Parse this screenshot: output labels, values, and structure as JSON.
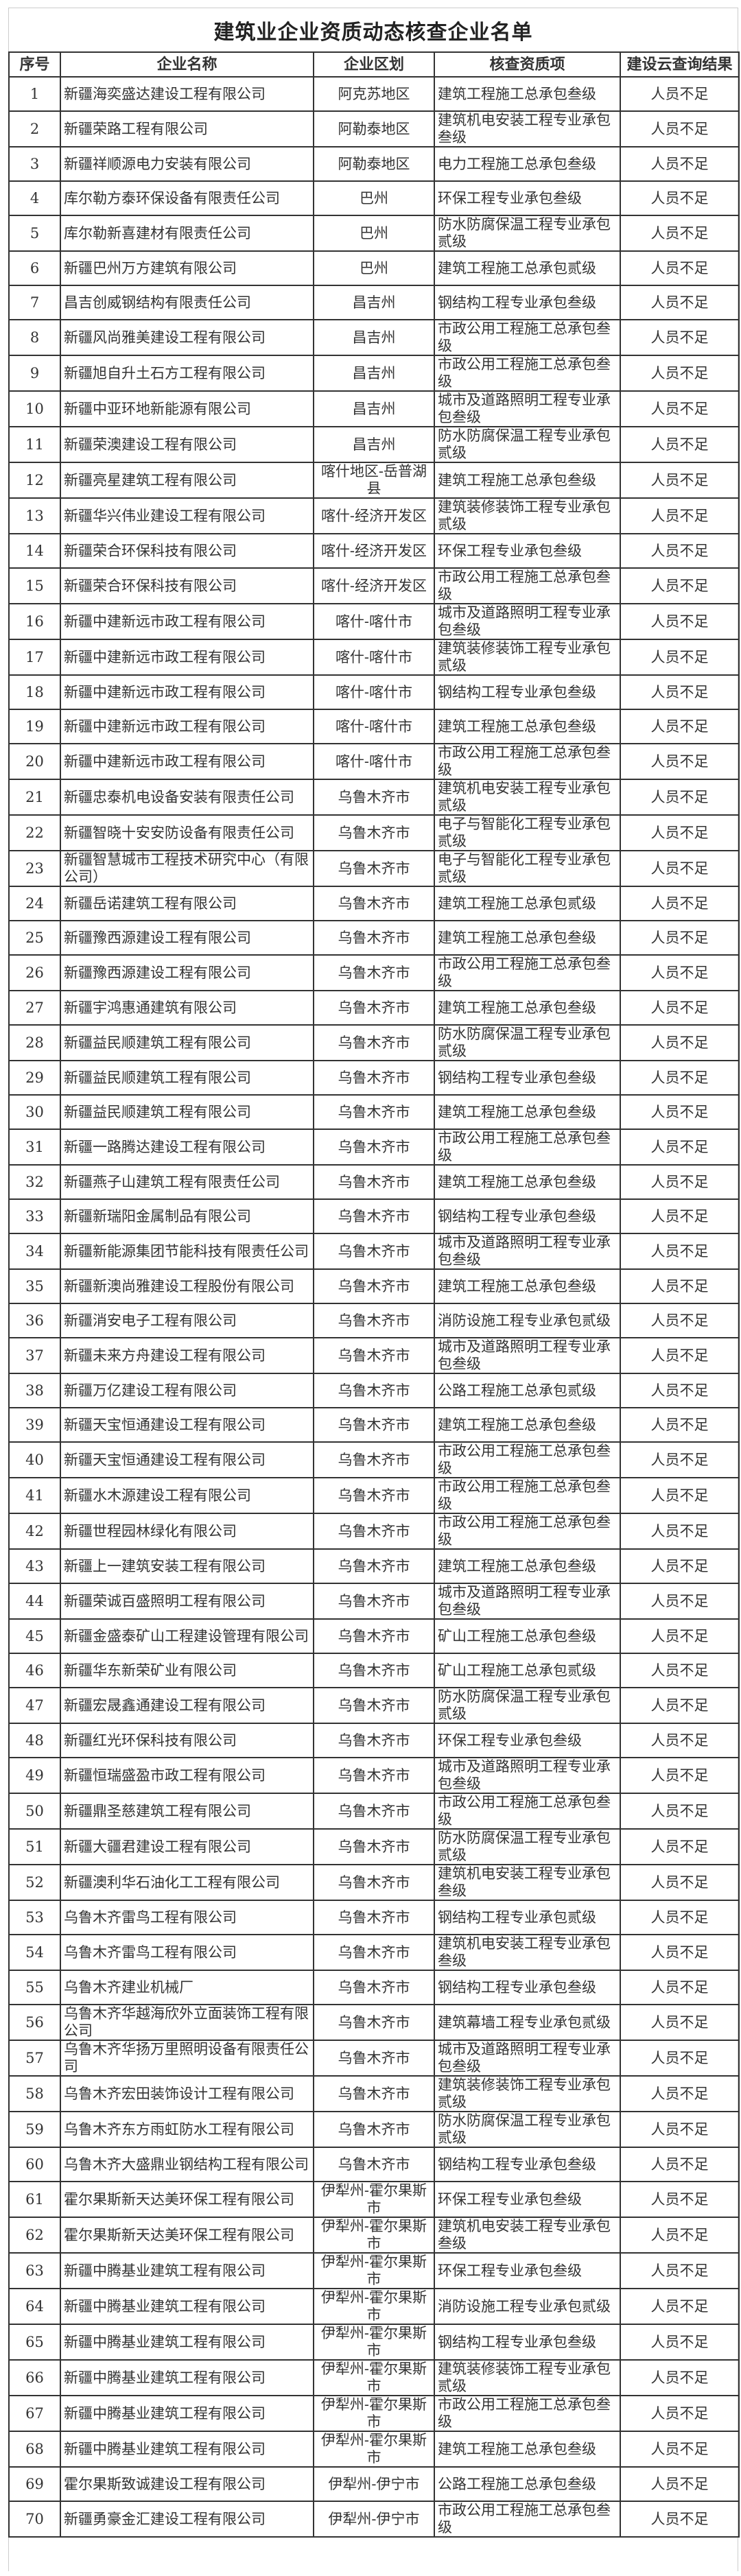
{
  "title": "建筑业企业资质动态核查企业名单",
  "headers": [
    "序号",
    "企业名称",
    "企业区划",
    "核查资质项",
    "建设云查询结果"
  ],
  "rows": [
    [
      "1",
      "新疆海奕盛达建设工程有限公司",
      "阿克苏地区",
      "建筑工程施工总承包叁级",
      "人员不足"
    ],
    [
      "2",
      "新疆荣路工程有限公司",
      "阿勒泰地区",
      "建筑机电安装工程专业承包叁级",
      "人员不足"
    ],
    [
      "3",
      "新疆祥顺源电力安装有限公司",
      "阿勒泰地区",
      "电力工程施工总承包叁级",
      "人员不足"
    ],
    [
      "4",
      "库尔勒方泰环保设备有限责任公司",
      "巴州",
      "环保工程专业承包叁级",
      "人员不足"
    ],
    [
      "5",
      "库尔勒新喜建材有限责任公司",
      "巴州",
      "防水防腐保温工程专业承包贰级",
      "人员不足"
    ],
    [
      "6",
      "新疆巴州万方建筑有限公司",
      "巴州",
      "建筑工程施工总承包贰级",
      "人员不足"
    ],
    [
      "7",
      "昌吉创威钢结构有限责任公司",
      "昌吉州",
      "钢结构工程专业承包叁级",
      "人员不足"
    ],
    [
      "8",
      "新疆风尚雅美建设工程有限公司",
      "昌吉州",
      "市政公用工程施工总承包叁级",
      "人员不足"
    ],
    [
      "9",
      "新疆旭自升土石方工程有限公司",
      "昌吉州",
      "市政公用工程施工总承包叁级",
      "人员不足"
    ],
    [
      "10",
      "新疆中亚环地新能源有限公司",
      "昌吉州",
      "城市及道路照明工程专业承包叁级",
      "人员不足"
    ],
    [
      "11",
      "新疆荣澳建设工程有限公司",
      "昌吉州",
      "防水防腐保温工程专业承包贰级",
      "人员不足"
    ],
    [
      "12",
      "新疆亮星建筑工程有限公司",
      "喀什地区-岳普湖县",
      "建筑工程施工总承包叁级",
      "人员不足"
    ],
    [
      "13",
      "新疆华兴伟业建设工程有限公司",
      "喀什-经济开发区",
      "建筑装修装饰工程专业承包贰级",
      "人员不足"
    ],
    [
      "14",
      "新疆荣合环保科技有限公司",
      "喀什-经济开发区",
      "环保工程专业承包叁级",
      "人员不足"
    ],
    [
      "15",
      "新疆荣合环保科技有限公司",
      "喀什-经济开发区",
      "市政公用工程施工总承包叁级",
      "人员不足"
    ],
    [
      "16",
      "新疆中建新远市政工程有限公司",
      "喀什-喀什市",
      "城市及道路照明工程专业承包叁级",
      "人员不足"
    ],
    [
      "17",
      "新疆中建新远市政工程有限公司",
      "喀什-喀什市",
      "建筑装修装饰工程专业承包贰级",
      "人员不足"
    ],
    [
      "18",
      "新疆中建新远市政工程有限公司",
      "喀什-喀什市",
      "钢结构工程专业承包叁级",
      "人员不足"
    ],
    [
      "19",
      "新疆中建新远市政工程有限公司",
      "喀什-喀什市",
      "建筑工程施工总承包叁级",
      "人员不足"
    ],
    [
      "20",
      "新疆中建新远市政工程有限公司",
      "喀什-喀什市",
      "市政公用工程施工总承包叁级",
      "人员不足"
    ],
    [
      "21",
      "新疆忠泰机电设备安装有限责任公司",
      "乌鲁木齐市",
      "建筑机电安装工程专业承包贰级",
      "人员不足"
    ],
    [
      "22",
      "新疆智晓十安安防设备有限责任公司",
      "乌鲁木齐市",
      "电子与智能化工程专业承包贰级",
      "人员不足"
    ],
    [
      "23",
      "新疆智慧城市工程技术研究中心（有限公司）",
      "乌鲁木齐市",
      "电子与智能化工程专业承包贰级",
      "人员不足"
    ],
    [
      "24",
      "新疆岳诺建筑工程有限公司",
      "乌鲁木齐市",
      "建筑工程施工总承包贰级",
      "人员不足"
    ],
    [
      "25",
      "新疆豫西源建设工程有限公司",
      "乌鲁木齐市",
      "建筑工程施工总承包叁级",
      "人员不足"
    ],
    [
      "26",
      "新疆豫西源建设工程有限公司",
      "乌鲁木齐市",
      "市政公用工程施工总承包叁级",
      "人员不足"
    ],
    [
      "27",
      "新疆宇鸿惠通建筑有限公司",
      "乌鲁木齐市",
      "建筑工程施工总承包叁级",
      "人员不足"
    ],
    [
      "28",
      "新疆益民顺建筑工程有限公司",
      "乌鲁木齐市",
      "防水防腐保温工程专业承包贰级",
      "人员不足"
    ],
    [
      "29",
      "新疆益民顺建筑工程有限公司",
      "乌鲁木齐市",
      "钢结构工程专业承包叁级",
      "人员不足"
    ],
    [
      "30",
      "新疆益民顺建筑工程有限公司",
      "乌鲁木齐市",
      "建筑工程施工总承包叁级",
      "人员不足"
    ],
    [
      "31",
      "新疆一路腾达建设工程有限公司",
      "乌鲁木齐市",
      "市政公用工程施工总承包叁级",
      "人员不足"
    ],
    [
      "32",
      "新疆燕子山建筑工程有限责任公司",
      "乌鲁木齐市",
      "建筑工程施工总承包叁级",
      "人员不足"
    ],
    [
      "33",
      "新疆新瑞阳金属制品有限公司",
      "乌鲁木齐市",
      "钢结构工程专业承包叁级",
      "人员不足"
    ],
    [
      "34",
      "新疆新能源集团节能科技有限责任公司",
      "乌鲁木齐市",
      "城市及道路照明工程专业承包叁级",
      "人员不足"
    ],
    [
      "35",
      "新疆新澳尚雅建设工程股份有限公司",
      "乌鲁木齐市",
      "建筑工程施工总承包叁级",
      "人员不足"
    ],
    [
      "36",
      "新疆消安电子工程有限公司",
      "乌鲁木齐市",
      "消防设施工程专业承包贰级",
      "人员不足"
    ],
    [
      "37",
      "新疆未来方舟建设工程有限公司",
      "乌鲁木齐市",
      "城市及道路照明工程专业承包叁级",
      "人员不足"
    ],
    [
      "38",
      "新疆万亿建设工程有限公司",
      "乌鲁木齐市",
      "公路工程施工总承包贰级",
      "人员不足"
    ],
    [
      "39",
      "新疆天宝恒通建设工程有限公司",
      "乌鲁木齐市",
      "建筑工程施工总承包叁级",
      "人员不足"
    ],
    [
      "40",
      "新疆天宝恒通建设工程有限公司",
      "乌鲁木齐市",
      "市政公用工程施工总承包叁级",
      "人员不足"
    ],
    [
      "41",
      "新疆水木源建设工程有限公司",
      "乌鲁木齐市",
      "市政公用工程施工总承包叁级",
      "人员不足"
    ],
    [
      "42",
      "新疆世程园林绿化有限公司",
      "乌鲁木齐市",
      "市政公用工程施工总承包叁级",
      "人员不足"
    ],
    [
      "43",
      "新疆上一建筑安装工程有限公司",
      "乌鲁木齐市",
      "建筑工程施工总承包叁级",
      "人员不足"
    ],
    [
      "44",
      "新疆荣诚百盛照明工程有限公司",
      "乌鲁木齐市",
      "城市及道路照明工程专业承包叁级",
      "人员不足"
    ],
    [
      "45",
      "新疆金盛泰矿山工程建设管理有限公司",
      "乌鲁木齐市",
      "矿山工程施工总承包叁级",
      "人员不足"
    ],
    [
      "46",
      "新疆华东新荣矿业有限公司",
      "乌鲁木齐市",
      "矿山工程施工总承包贰级",
      "人员不足"
    ],
    [
      "47",
      "新疆宏晟鑫通建设工程有限公司",
      "乌鲁木齐市",
      "防水防腐保温工程专业承包贰级",
      "人员不足"
    ],
    [
      "48",
      "新疆红光环保科技有限公司",
      "乌鲁木齐市",
      "环保工程专业承包叁级",
      "人员不足"
    ],
    [
      "49",
      "新疆恒瑞盛盈市政工程有限公司",
      "乌鲁木齐市",
      "城市及道路照明工程专业承包叁级",
      "人员不足"
    ],
    [
      "50",
      "新疆鼎圣慈建筑工程有限公司",
      "乌鲁木齐市",
      "市政公用工程施工总承包叁级",
      "人员不足"
    ],
    [
      "51",
      "新疆大疆君建设工程有限公司",
      "乌鲁木齐市",
      "防水防腐保温工程专业承包贰级",
      "人员不足"
    ],
    [
      "52",
      "新疆澳利华石油化工工程有限公司",
      "乌鲁木齐市",
      "建筑机电安装工程专业承包叁级",
      "人员不足"
    ],
    [
      "53",
      "乌鲁木齐雷鸟工程有限公司",
      "乌鲁木齐市",
      "钢结构工程专业承包贰级",
      "人员不足"
    ],
    [
      "54",
      "乌鲁木齐雷鸟工程有限公司",
      "乌鲁木齐市",
      "建筑机电安装工程专业承包叁级",
      "人员不足"
    ],
    [
      "55",
      "乌鲁木齐建业机械厂",
      "乌鲁木齐市",
      "钢结构工程专业承包叁级",
      "人员不足"
    ],
    [
      "56",
      "乌鲁木齐华越海欣外立面装饰工程有限公司",
      "乌鲁木齐市",
      "建筑幕墙工程专业承包贰级",
      "人员不足"
    ],
    [
      "57",
      "乌鲁木齐华扬万里照明设备有限责任公司",
      "乌鲁木齐市",
      "城市及道路照明工程专业承包叁级",
      "人员不足"
    ],
    [
      "58",
      "乌鲁木齐宏田装饰设计工程有限公司",
      "乌鲁木齐市",
      "建筑装修装饰工程专业承包贰级",
      "人员不足"
    ],
    [
      "59",
      "乌鲁木齐东方雨虹防水工程有限公司",
      "乌鲁木齐市",
      "防水防腐保温工程专业承包贰级",
      "人员不足"
    ],
    [
      "60",
      "乌鲁木齐大盛鼎业钢结构工程有限公司",
      "乌鲁木齐市",
      "钢结构工程专业承包叁级",
      "人员不足"
    ],
    [
      "61",
      "霍尔果斯新天达美环保工程有限公司",
      "伊犁州-霍尔果斯市",
      "环保工程专业承包叁级",
      "人员不足"
    ],
    [
      "62",
      "霍尔果斯新天达美环保工程有限公司",
      "伊犁州-霍尔果斯市",
      "建筑机电安装工程专业承包叁级",
      "人员不足"
    ],
    [
      "63",
      "新疆中腾基业建筑工程有限公司",
      "伊犁州-霍尔果斯市",
      "环保工程专业承包叁级",
      "人员不足"
    ],
    [
      "64",
      "新疆中腾基业建筑工程有限公司",
      "伊犁州-霍尔果斯市",
      "消防设施工程专业承包贰级",
      "人员不足"
    ],
    [
      "65",
      "新疆中腾基业建筑工程有限公司",
      "伊犁州-霍尔果斯市",
      "钢结构工程专业承包叁级",
      "人员不足"
    ],
    [
      "66",
      "新疆中腾基业建筑工程有限公司",
      "伊犁州-霍尔果斯市",
      "建筑装修装饰工程专业承包贰级",
      "人员不足"
    ],
    [
      "67",
      "新疆中腾基业建筑工程有限公司",
      "伊犁州-霍尔果斯市",
      "市政公用工程施工总承包叁级",
      "人员不足"
    ],
    [
      "68",
      "新疆中腾基业建筑工程有限公司",
      "伊犁州-霍尔果斯市",
      "建筑工程施工总承包叁级",
      "人员不足"
    ],
    [
      "69",
      "霍尔果斯致诚建设工程有限公司",
      "伊犁州-伊宁市",
      "公路工程施工总承包叁级",
      "人员不足"
    ],
    [
      "70",
      "新疆勇豪金汇建设工程有限公司",
      "伊犁州-伊宁市",
      "市政公用工程施工总承包叁级",
      "人员不足"
    ]
  ]
}
